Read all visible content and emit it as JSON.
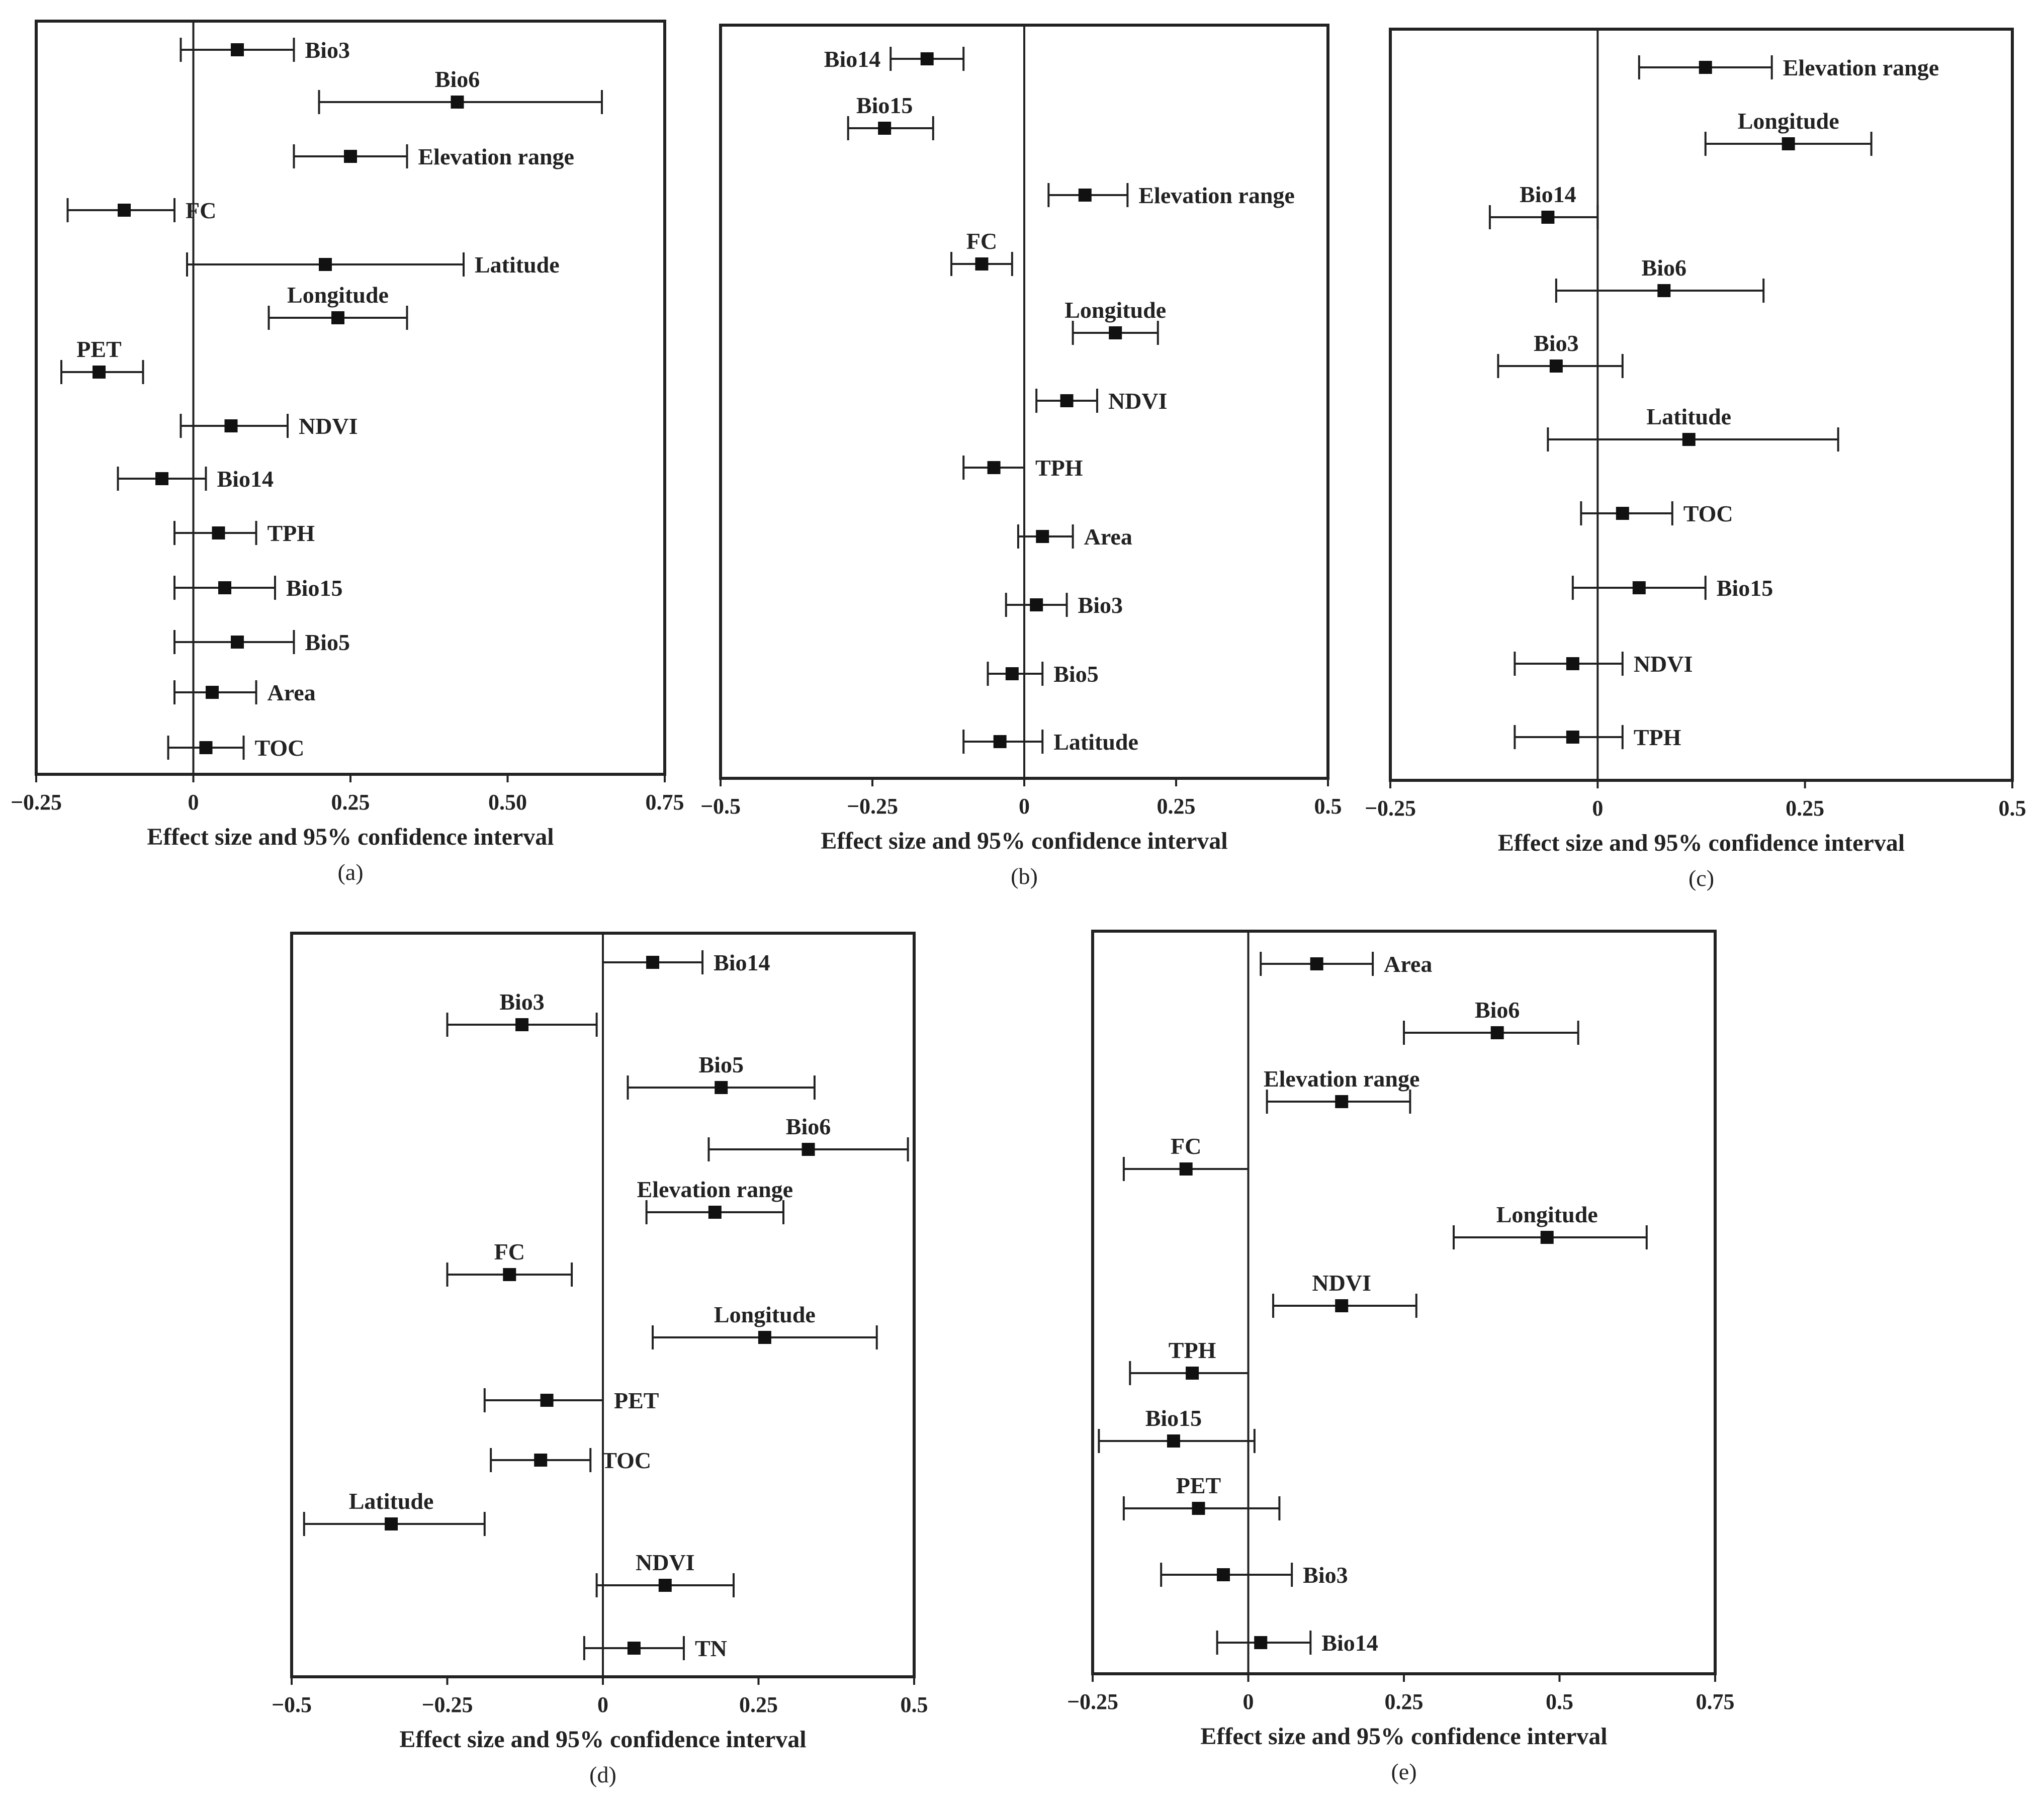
{
  "chart_data": [
    {
      "type": "forest",
      "panel": "(a)",
      "xlabel": "Effect size and 95% confidence interval",
      "xlim": [
        -0.25,
        0.75
      ],
      "ticks": [
        -0.25,
        0,
        0.25,
        0.5,
        0.75
      ],
      "tick_labels": [
        "−0.25",
        "0",
        "0.25",
        "0.50",
        "0.75"
      ],
      "labels": [
        "Bio3",
        "Bio6",
        "Elevation range",
        "FC",
        "Latitude",
        "Longitude",
        "PET",
        "NDVI",
        "Bio14",
        "TPH",
        "Bio15",
        "Bio5",
        "Area",
        "TOC"
      ],
      "label_pos": [
        "right",
        "above",
        "right",
        "right",
        "right",
        "above",
        "above",
        "right",
        "right",
        "right",
        "right",
        "right",
        "right",
        "right"
      ],
      "estimate": [
        0.07,
        0.42,
        0.25,
        -0.11,
        0.21,
        0.23,
        -0.15,
        0.06,
        -0.05,
        0.04,
        0.05,
        0.07,
        0.03,
        0.02
      ],
      "ci_low": [
        -0.02,
        0.2,
        0.16,
        -0.2,
        -0.01,
        0.12,
        -0.21,
        -0.02,
        -0.12,
        -0.03,
        -0.03,
        -0.03,
        -0.03,
        -0.04
      ],
      "ci_high": [
        0.16,
        0.65,
        0.34,
        -0.03,
        0.43,
        0.34,
        -0.08,
        0.15,
        0.02,
        0.1,
        0.13,
        0.16,
        0.1,
        0.08
      ]
    },
    {
      "type": "forest",
      "panel": "(b)",
      "xlabel": "Effect size and 95% confidence interval",
      "xlim": [
        -0.5,
        0.5
      ],
      "ticks": [
        -0.5,
        -0.25,
        0,
        0.25,
        0.5
      ],
      "tick_labels": [
        "−0.5",
        "−0.25",
        "0",
        "0.25",
        "0.5"
      ],
      "labels": [
        "Bio14",
        "Bio15",
        "Elevation range",
        "FC",
        "Longitude",
        "NDVI",
        "TPH",
        "Area",
        "Bio3",
        "Bio5",
        "Latitude"
      ],
      "label_pos": [
        "left",
        "above",
        "right",
        "above",
        "above",
        "right",
        "right",
        "right",
        "right",
        "right",
        "right"
      ],
      "estimate": [
        -0.16,
        -0.23,
        0.1,
        -0.07,
        0.15,
        0.07,
        -0.05,
        0.03,
        0.02,
        -0.02,
        -0.04
      ],
      "ci_low": [
        -0.22,
        -0.29,
        0.04,
        -0.12,
        0.08,
        0.02,
        -0.1,
        -0.01,
        -0.03,
        -0.06,
        -0.1
      ],
      "ci_high": [
        -0.1,
        -0.15,
        0.17,
        -0.02,
        0.22,
        0.12,
        0.0,
        0.08,
        0.07,
        0.03,
        0.03
      ]
    },
    {
      "type": "forest",
      "panel": "(c)",
      "xlabel": "Effect size and 95% confidence interval",
      "xlim": [
        -0.25,
        0.5
      ],
      "ticks": [
        -0.25,
        0,
        0.25,
        0.5
      ],
      "tick_labels": [
        "−0.25",
        "0",
        "0.25",
        "0.5"
      ],
      "labels": [
        "Elevation range",
        "Longitude",
        "Bio14",
        "Bio6",
        "Bio3",
        "Latitude",
        "TOC",
        "Bio15",
        "NDVI",
        "TPH"
      ],
      "label_pos": [
        "right",
        "above",
        "above",
        "above",
        "above",
        "above",
        "right",
        "right",
        "right",
        "right"
      ],
      "estimate": [
        0.13,
        0.23,
        -0.06,
        0.08,
        -0.05,
        0.11,
        0.03,
        0.05,
        -0.03,
        -0.03
      ],
      "ci_low": [
        0.05,
        0.13,
        -0.13,
        -0.05,
        -0.12,
        -0.06,
        -0.02,
        -0.03,
        -0.1,
        -0.1
      ],
      "ci_high": [
        0.21,
        0.33,
        0.0,
        0.2,
        0.03,
        0.29,
        0.09,
        0.13,
        0.03,
        0.03
      ]
    },
    {
      "type": "forest",
      "panel": "(d)",
      "xlabel": "Effect size and 95% confidence interval",
      "xlim": [
        -0.5,
        0.5
      ],
      "ticks": [
        -0.5,
        -0.25,
        0,
        0.25,
        0.5
      ],
      "tick_labels": [
        "−0.5",
        "−0.25",
        "0",
        "0.25",
        "0.5"
      ],
      "labels": [
        "Bio14",
        "Bio3",
        "Bio5",
        "Bio6",
        "Elevation range",
        "FC",
        "Longitude",
        "PET",
        "TOC",
        "Latitude",
        "NDVI",
        "TN"
      ],
      "label_pos": [
        "right",
        "above",
        "above",
        "above",
        "above",
        "above",
        "above",
        "right",
        "right",
        "above",
        "above",
        "right"
      ],
      "estimate": [
        0.08,
        -0.13,
        0.19,
        0.33,
        0.18,
        -0.15,
        0.26,
        -0.09,
        -0.1,
        -0.34,
        0.1,
        0.05
      ],
      "ci_low": [
        0.0,
        -0.25,
        0.04,
        0.17,
        0.07,
        -0.25,
        0.08,
        -0.19,
        -0.18,
        -0.48,
        -0.01,
        -0.03
      ],
      "ci_high": [
        0.16,
        -0.01,
        0.34,
        0.49,
        0.29,
        -0.05,
        0.44,
        0.0,
        -0.02,
        -0.19,
        0.21,
        0.13
      ]
    },
    {
      "type": "forest",
      "panel": "(e)",
      "xlabel": "Effect size and 95% confidence interval",
      "xlim": [
        -0.25,
        0.75
      ],
      "ticks": [
        -0.25,
        0,
        0.25,
        0.5,
        0.75
      ],
      "tick_labels": [
        "−0.25",
        "0",
        "0.25",
        "0.5",
        "0.75"
      ],
      "labels": [
        "Area",
        "Bio6",
        "Elevation range",
        "FC",
        "Longitude",
        "NDVI",
        "TPH",
        "Bio15",
        "PET",
        "Bio3",
        "Bio14"
      ],
      "label_pos": [
        "right",
        "above",
        "above",
        "above",
        "above",
        "above",
        "above",
        "above",
        "above",
        "right",
        "right"
      ],
      "estimate": [
        0.11,
        0.4,
        0.15,
        -0.1,
        0.48,
        0.15,
        -0.09,
        -0.12,
        -0.08,
        -0.04,
        0.02
      ],
      "ci_low": [
        0.02,
        0.25,
        0.03,
        -0.2,
        0.33,
        0.04,
        -0.19,
        -0.24,
        -0.2,
        -0.14,
        -0.05
      ],
      "ci_high": [
        0.2,
        0.53,
        0.26,
        0.0,
        0.64,
        0.27,
        0.0,
        0.01,
        0.05,
        0.07,
        0.1
      ]
    }
  ]
}
